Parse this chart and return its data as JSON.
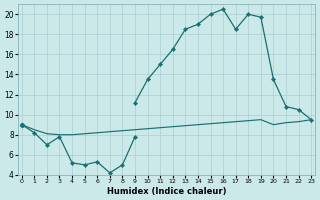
{
  "xlabel": "Humidex (Indice chaleur)",
  "background_color": "#cce9ea",
  "grid_color": "#aacdd4",
  "line_color": "#1a7070",
  "ylim": [
    4,
    21
  ],
  "xlim": [
    -0.3,
    23.3
  ],
  "yticks": [
    4,
    6,
    8,
    10,
    12,
    14,
    16,
    18,
    20
  ],
  "xticks": [
    0,
    1,
    2,
    3,
    4,
    5,
    6,
    7,
    8,
    9,
    10,
    11,
    12,
    13,
    14,
    15,
    16,
    17,
    18,
    19,
    20,
    21,
    22,
    23
  ],
  "c1_x": [
    0,
    1,
    2,
    3,
    4,
    5,
    6,
    7,
    8,
    9
  ],
  "c1_y": [
    9.0,
    8.2,
    7.0,
    7.8,
    5.2,
    5.0,
    5.3,
    4.2,
    5.0,
    7.8
  ],
  "c2_x": [
    0,
    9,
    10,
    11,
    12,
    13,
    14,
    15,
    16,
    17,
    18,
    19,
    20,
    21,
    22,
    23
  ],
  "c2_y": [
    9.0,
    11.2,
    13.5,
    15.0,
    16.5,
    18.5,
    19.0,
    20.0,
    20.5,
    18.5,
    20.0,
    19.7,
    13.5,
    10.8,
    10.5,
    9.5
  ],
  "c3_x": [
    0,
    1,
    2,
    3,
    4,
    5,
    6,
    7,
    8,
    9,
    10,
    11,
    12,
    13,
    14,
    15,
    16,
    17,
    18,
    19,
    20,
    21,
    22,
    23
  ],
  "c3_y": [
    9.0,
    8.5,
    8.1,
    8.0,
    8.0,
    8.1,
    8.2,
    8.3,
    8.4,
    8.5,
    8.6,
    8.7,
    8.8,
    8.9,
    9.0,
    9.1,
    9.2,
    9.3,
    9.4,
    9.5,
    9.0,
    9.2,
    9.3,
    9.5
  ]
}
